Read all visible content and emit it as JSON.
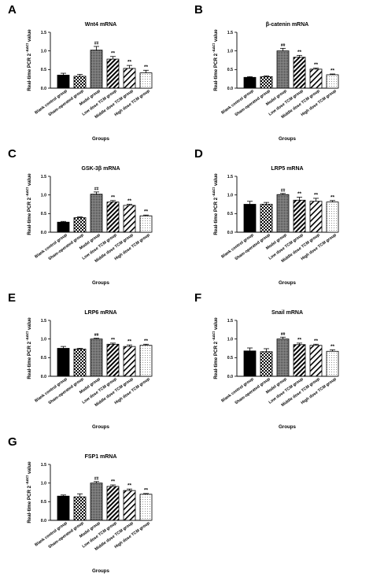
{
  "colors": {
    "axis": "#000000",
    "bar_stroke": "#000000",
    "background": "#ffffff"
  },
  "shared": {
    "ylabel": "Real-time PCR 2",
    "ylabel_sup": "-ΔΔCt",
    "ylabel_tail": " value",
    "xlabel": "Groups",
    "categories": [
      "Blank control group",
      "Sham-operated group",
      "Model group",
      "Low dose TCM group",
      "Middle dose TCM group",
      "High dose TCM group"
    ],
    "fills": [
      "solid-black",
      "checker",
      "dense-gray-dots",
      "diagonal-hatch",
      "diagonal-hatch-wide",
      "light-dots"
    ]
  },
  "chart_data": [
    {
      "letter": "A",
      "type": "bar",
      "title": "Wnt4 mRNA",
      "ylim": [
        0,
        1.5
      ],
      "yticks": [
        "0.0",
        "0.5",
        "1.0",
        "1.5"
      ],
      "values": [
        0.35,
        0.32,
        1.02,
        0.78,
        0.53,
        0.41
      ],
      "errors": [
        0.05,
        0.05,
        0.1,
        0.07,
        0.08,
        0.07
      ],
      "annotations": [
        "",
        "",
        "##",
        "**",
        "**",
        "**"
      ]
    },
    {
      "letter": "B",
      "type": "bar",
      "title": "β-catenin mRNA",
      "ylim": [
        0,
        1.5
      ],
      "yticks": [
        "0.0",
        "0.5",
        "1.0",
        "1.5"
      ],
      "values": [
        0.29,
        0.31,
        1.0,
        0.83,
        0.51,
        0.36
      ],
      "errors": [
        0.02,
        0.02,
        0.07,
        0.05,
        0.03,
        0.02
      ],
      "annotations": [
        "",
        "",
        "##",
        "**",
        "**",
        "**"
      ]
    },
    {
      "letter": "C",
      "type": "bar",
      "title": "GSK-3β mRNA",
      "ylim": [
        0,
        1.5
      ],
      "yticks": [
        "0.0",
        "0.5",
        "1.0",
        "1.5"
      ],
      "values": [
        0.27,
        0.39,
        1.02,
        0.81,
        0.72,
        0.44
      ],
      "errors": [
        0.02,
        0.02,
        0.06,
        0.04,
        0.03,
        0.02
      ],
      "annotations": [
        "",
        "",
        "##",
        "**",
        "**",
        "**"
      ]
    },
    {
      "letter": "D",
      "type": "bar",
      "title": "LRP5 mRNA",
      "ylim": [
        0,
        1.5
      ],
      "yticks": [
        "0.0",
        "0.5",
        "1.0",
        "1.5"
      ],
      "values": [
        0.75,
        0.75,
        1.01,
        0.86,
        0.83,
        0.81
      ],
      "errors": [
        0.08,
        0.05,
        0.03,
        0.08,
        0.08,
        0.04
      ],
      "annotations": [
        "",
        "",
        "##",
        "**",
        "**",
        "**"
      ]
    },
    {
      "letter": "E",
      "type": "bar",
      "title": "LRP6 mRNA",
      "ylim": [
        0,
        1.5
      ],
      "yticks": [
        "0.0",
        "0.5",
        "1.0",
        "1.5"
      ],
      "values": [
        0.75,
        0.73,
        1.0,
        0.86,
        0.8,
        0.83
      ],
      "errors": [
        0.05,
        0.02,
        0.02,
        0.03,
        0.04,
        0.03
      ],
      "annotations": [
        "",
        "",
        "##",
        "**",
        "**",
        "**"
      ]
    },
    {
      "letter": "F",
      "type": "bar",
      "title": "Snail mRNA",
      "ylim": [
        0,
        1.5
      ],
      "yticks": [
        "0.0",
        "0.5",
        "1.0",
        "1.5"
      ],
      "values": [
        0.68,
        0.66,
        1.0,
        0.85,
        0.83,
        0.67
      ],
      "errors": [
        0.08,
        0.08,
        0.05,
        0.04,
        0.03,
        0.04
      ],
      "annotations": [
        "",
        "",
        "##",
        "**",
        "**",
        "**"
      ]
    },
    {
      "letter": "G",
      "type": "bar",
      "title": "FSP1 mRNA",
      "ylim": [
        0,
        1.5
      ],
      "yticks": [
        "0.0",
        "0.5",
        "1.0",
        "1.5"
      ],
      "values": [
        0.65,
        0.63,
        1.0,
        0.91,
        0.8,
        0.7
      ],
      "errors": [
        0.03,
        0.08,
        0.04,
        0.04,
        0.04,
        0.02
      ],
      "annotations": [
        "",
        "",
        "##",
        "**",
        "**",
        "**"
      ]
    }
  ]
}
